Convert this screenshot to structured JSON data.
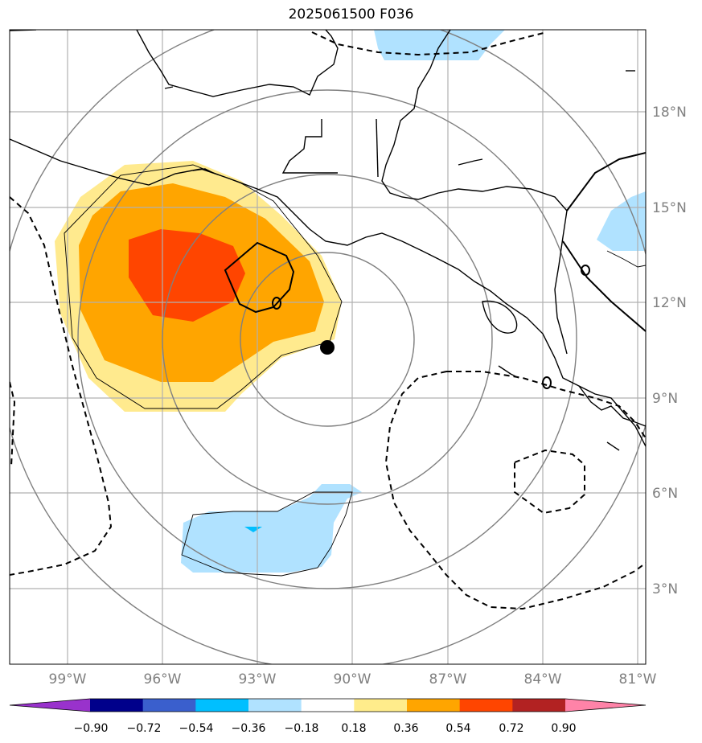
{
  "title": "2025061500 F036",
  "lon_labels": [
    "99°W",
    "96°W",
    "93°W",
    "90°W",
    "87°W",
    "84°W",
    "81°W"
  ],
  "lat_labels": [
    "18°N",
    "15°N",
    "12°N",
    "9°N",
    "6°N",
    "3°N"
  ],
  "colorbar": {
    "labels": [
      "−0.90",
      "−0.72",
      "−0.54",
      "−0.36",
      "−0.18",
      "0.18",
      "0.36",
      "0.54",
      "0.72",
      "0.90"
    ],
    "colors": [
      "#9932cc",
      "#00008b",
      "#3a5fcd",
      "#00bfff",
      "#b0e2ff",
      "#ffffff",
      "#ffec8b",
      "#ffa500",
      "#ff4500",
      "#b22222",
      "#ff83a8"
    ]
  },
  "fill_colors": {
    "light_yellow": "#ffea8e",
    "orange": "#ffa500",
    "red_orange": "#ff4500",
    "light_blue": "#b0e2ff",
    "sky_blue": "#00bfff"
  },
  "marker": "storm-center-dot"
}
